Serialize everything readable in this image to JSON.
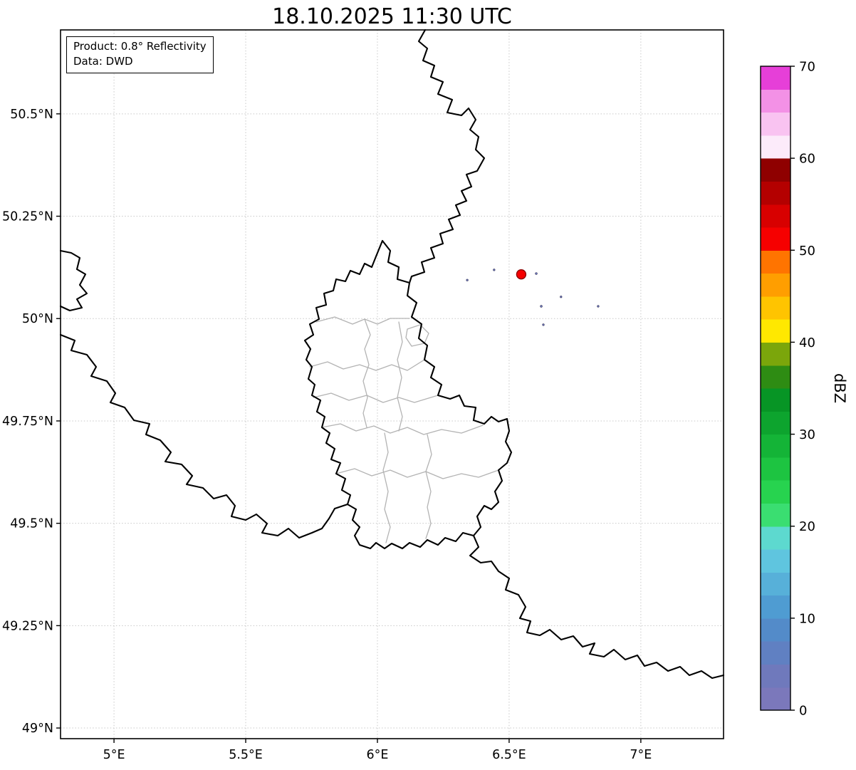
{
  "title": "18.10.2025 11:30 UTC",
  "info_box": {
    "line1": "Product: 0.8° Reflectivity",
    "line2": "Data: DWD"
  },
  "axes": {
    "lon_range": [
      4.797,
      7.314
    ],
    "lat_range": [
      48.974,
      50.705
    ],
    "lon_ticks": [
      {
        "v": 5.0,
        "label": "5°E"
      },
      {
        "v": 5.5,
        "label": "5.5°E"
      },
      {
        "v": 6.0,
        "label": "6°E"
      },
      {
        "v": 6.5,
        "label": "6.5°E"
      },
      {
        "v": 7.0,
        "label": "7°E"
      }
    ],
    "lat_ticks": [
      {
        "v": 50.5,
        "label": "50.5°N"
      },
      {
        "v": 50.25,
        "label": "50.25°N"
      },
      {
        "v": 50.0,
        "label": "50°N"
      },
      {
        "v": 49.75,
        "label": "49.75°N"
      },
      {
        "v": 49.5,
        "label": "49.5°N"
      },
      {
        "v": 49.25,
        "label": "49.25°N"
      },
      {
        "v": 49.0,
        "label": "49°N"
      }
    ]
  },
  "grid": {
    "color": "#c8c8c8"
  },
  "colorbar": {
    "label": "dBZ",
    "min": 0,
    "max": 70,
    "ticks": [
      0,
      10,
      20,
      30,
      40,
      50,
      60,
      70
    ],
    "segment_step": 2.5,
    "colors_bottom_to_top": [
      "#7b78bb",
      "#6f79bc",
      "#6080c2",
      "#538bc9",
      "#4f9cd2",
      "#57b0d9",
      "#5fc5df",
      "#5dd9cf",
      "#3ade71",
      "#27d34f",
      "#1dc441",
      "#14b437",
      "#0da42e",
      "#079525",
      "#2e8c13",
      "#7ba60b",
      "#ffe800",
      "#ffc400",
      "#ff9e00",
      "#ff7400",
      "#f60000",
      "#d80000",
      "#b40000",
      "#8f0000",
      "#fcebfa",
      "#f9c3f1",
      "#f391e6",
      "#e63fd8"
    ]
  },
  "map": {
    "border_color": "#000000",
    "admin_color": "#b3b3b3",
    "country_borders": [
      "M597,42 L588,58 L600,68 L594,85 L610,92 L605,108 L622,115 L615,132 L635,140 L628,158 L648,162 L658,152 L668,168 L660,182 L672,192 L668,210 L680,222 L670,240 L655,245 L662,262 L648,268 L655,282 L640,288 L646,302 L630,308 L636,322 L618,328 L622,342 L605,348 L610,362 L592,368 L596,382 L578,388 L575,397",
      "M537,338 L548,352 L545,368 L560,375 L558,392 L575,397 L572,415 L585,425 L578,445 L592,455 L588,475 L600,485 L596,505 L610,515 L605,530 L620,540 L615,555 L632,560 L645,555 L652,570 L668,572 L665,590 L680,595 L690,585 L700,592 L712,588 L715,605 L710,620 L718,635 L712,650 L700,660 L705,675 L695,690 L700,705 L690,715 L680,710 L670,725 L675,740 L665,752 L650,748 L640,760 L625,755 L615,765 L600,758 L590,768 L575,762 L565,770 L550,763 L540,770 L528,762 L520,770 L505,765 L498,752 L505,740 L495,730 L500,715 L488,708 L492,695 L480,688 L485,672 L472,665 L478,650 L465,645 L470,630 L458,622 L463,608 L452,600 L456,585 L445,578 L450,562 L438,555 L442,540 L433,532 L438,515 L430,505 L436,490 L428,478 L440,470 L435,455 L448,448 L444,432 L458,428 L455,412 L468,408 L472,392 L485,395 L492,380 L505,385 L512,370 L522,375 L528,360 Z",
      "M85,470 L105,478 L100,492 L122,498 L135,515 L128,528 L150,535 L162,552 L155,565 L175,572 L188,590 L210,595 L205,610 L225,618 L240,635 L232,648 L255,652 L270,668 L262,680 L285,685 L300,700 L318,695 L330,710 L325,725 L345,730 L360,722 L375,735 L368,748 L390,752 L405,742 L420,755 L438,748 L452,742 L462,728 L470,714 L488,708",
      "M665,752 L672,768 L660,780 L675,790 L690,788 L700,802 L715,812 L710,828 L728,835 L738,852 L730,868 L745,872 L740,888 L758,892 L772,884 L788,898 L805,893 L818,908 L835,903 L828,918 L848,922 L862,912 L878,926 L895,920 L905,935 L922,930 L938,942 L955,936 L968,948 L985,942 L1000,952 L1016,948",
      "M85,352 L100,355 L112,362 L108,378 L120,385 L112,400 L122,412 L108,420 L115,432 L98,436 L85,430"
    ],
    "admin_borders": [
      "M444,452 L470,445 L495,455 L512,448 L530,455 L548,447 L575,447",
      "M435,515 L460,508 L482,518 L505,512 L528,520 L550,512 L572,520 L596,505",
      "M440,558 L465,552 L490,562 L515,555 L538,565 L560,558 L582,565 L605,558 L615,555",
      "M452,600 L478,595 L500,605 L525,598 L548,608 L572,600 L595,610 L620,603 L648,608 L678,597",
      "M472,665 L498,658 L522,668 L548,660 L572,670 L598,662 L622,672 L648,665 L672,670 L700,660",
      "M512,448 L520,470 L512,490 L518,512 L510,535 L516,558 L510,580 L515,600",
      "M560,452 L565,480 L558,505 L564,530 L558,558 L565,585 L560,605",
      "M540,608 L545,635 L538,660 L545,690 L540,715 L548,740 L542,762",
      "M600,610 L606,638 L598,662 L605,690 L600,712 L605,735 L598,756",
      "M572,462 L590,456 L602,468 L596,482 L578,486 L570,474 Z"
    ]
  },
  "echoes": [
    {
      "lon": 6.546,
      "lat": 50.108,
      "dbz": 50,
      "r": 6.5,
      "edge": "#8b0000"
    },
    {
      "lon": 6.341,
      "lat": 50.094,
      "dbz": 3,
      "r": 1.3
    },
    {
      "lon": 6.443,
      "lat": 50.119,
      "dbz": 3,
      "r": 1.3
    },
    {
      "lon": 6.603,
      "lat": 50.11,
      "dbz": 3,
      "r": 1.4
    },
    {
      "lon": 6.622,
      "lat": 50.03,
      "dbz": 3,
      "r": 1.4
    },
    {
      "lon": 6.697,
      "lat": 50.053,
      "dbz": 3,
      "r": 1.3
    },
    {
      "lon": 6.838,
      "lat": 50.03,
      "dbz": 3,
      "r": 1.3
    },
    {
      "lon": 6.63,
      "lat": 49.985,
      "dbz": 3,
      "r": 1.3
    }
  ]
}
